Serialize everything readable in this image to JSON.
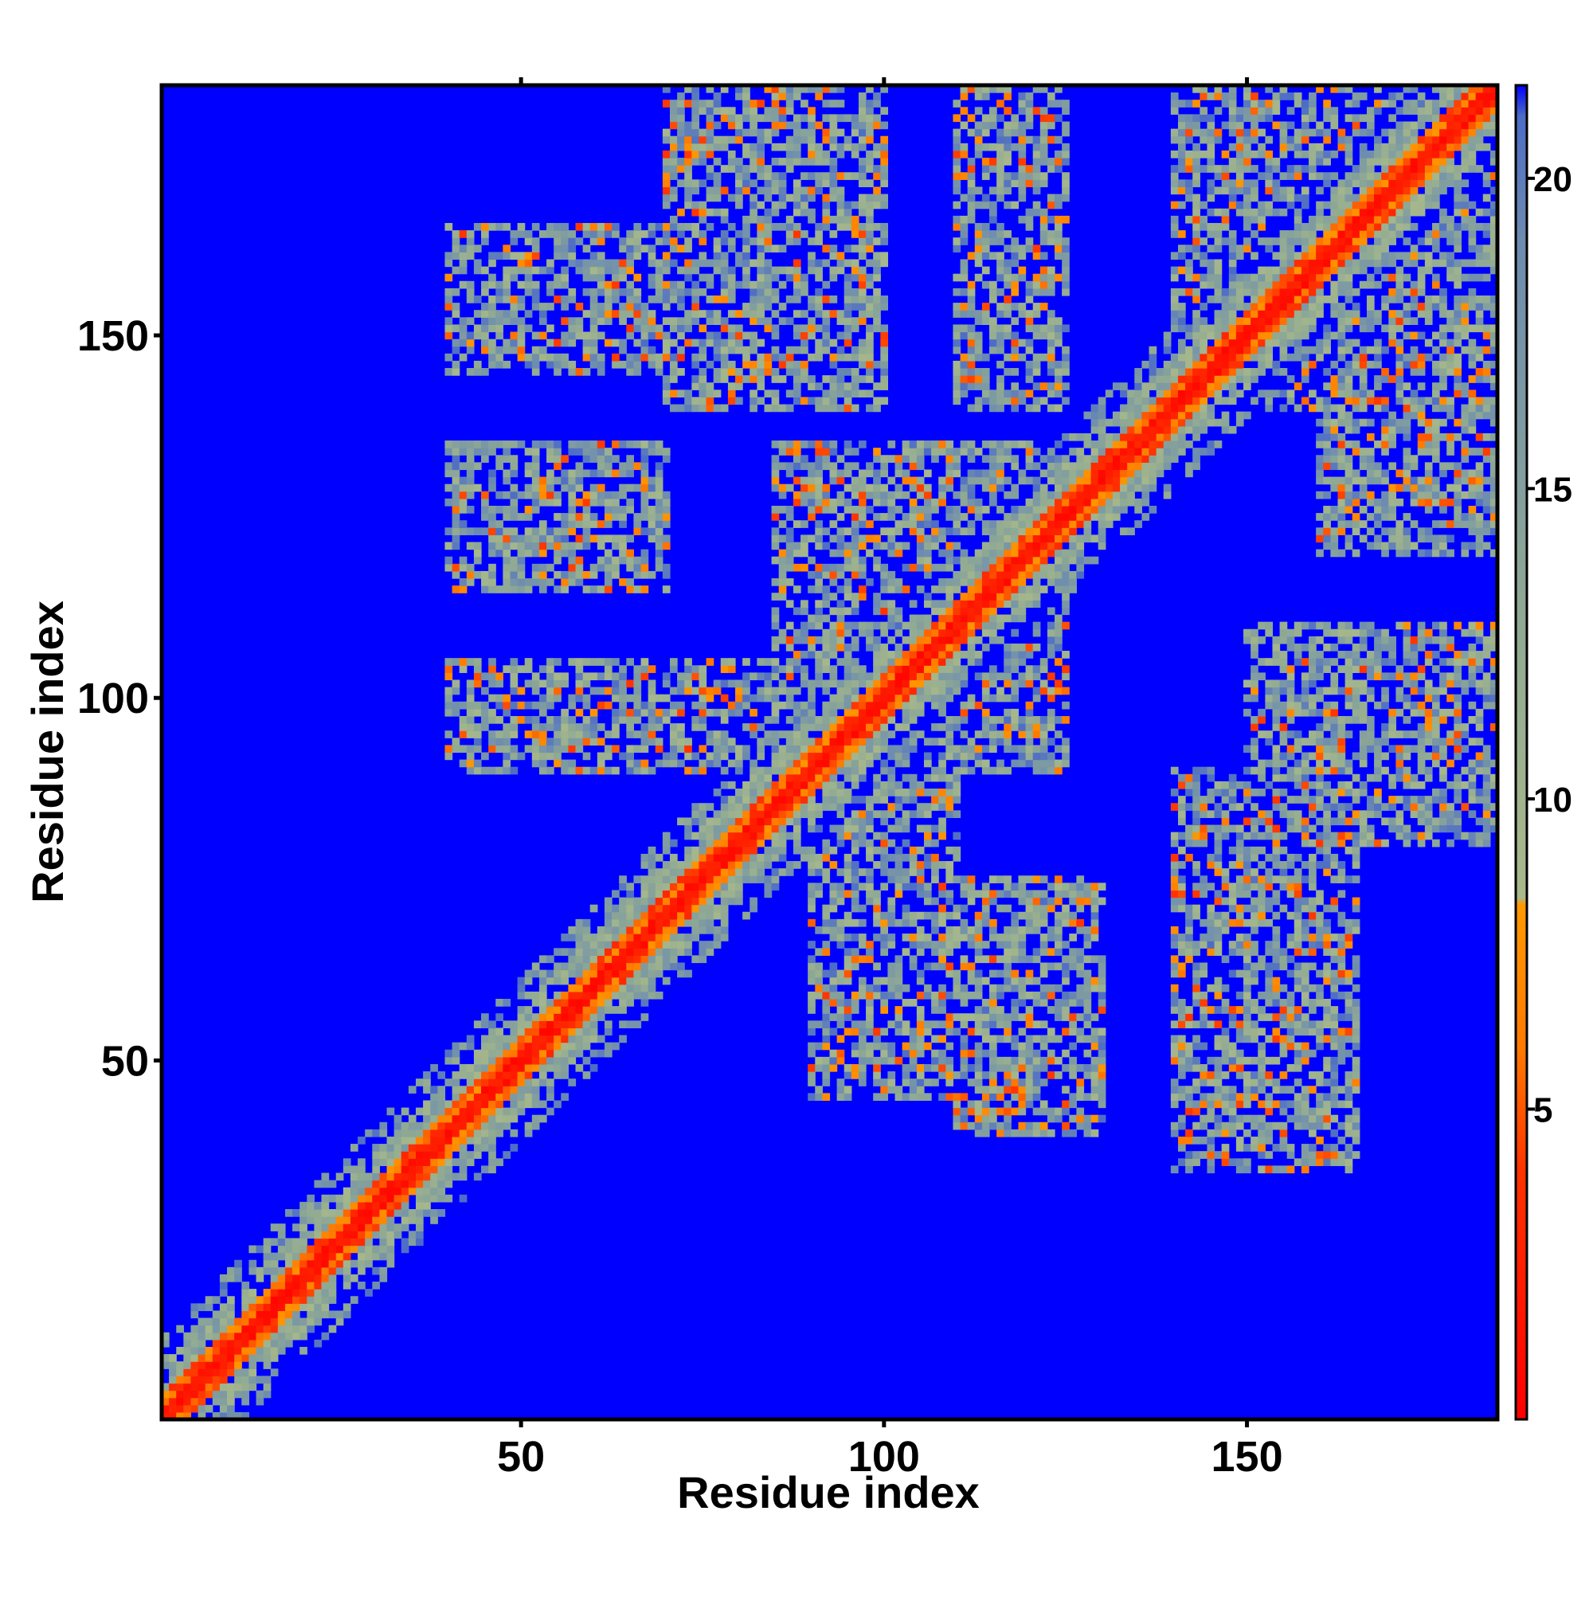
{
  "chart_data": {
    "type": "heatmap",
    "title": "",
    "xlabel": "Residue index",
    "ylabel": "Residue index",
    "xlim": [
      1,
      184
    ],
    "ylim": [
      1,
      184
    ],
    "n_residues": 184,
    "x_ticks": [
      50,
      100,
      150
    ],
    "y_ticks": [
      50,
      100,
      150
    ],
    "colorbar": {
      "ticks": [
        5,
        10,
        15,
        20
      ],
      "range": [
        0,
        21.5
      ],
      "stops": [
        {
          "value": 0.0,
          "color": "#ff0000"
        },
        {
          "value": 4.0,
          "color": "#ff3300"
        },
        {
          "value": 6.0,
          "color": "#ff7a00"
        },
        {
          "value": 8.3,
          "color": "#ff9900"
        },
        {
          "value": 8.4,
          "color": "#a9b98a"
        },
        {
          "value": 13.0,
          "color": "#8fa994"
        },
        {
          "value": 19.0,
          "color": "#6d8cb0"
        },
        {
          "value": 21.0,
          "color": "#4d6cc6"
        },
        {
          "value": 21.5,
          "color": "#0000ff"
        }
      ]
    },
    "background_value": 21.5,
    "colors": {
      "background": "#0000ff",
      "diagonal": "#ff0000"
    },
    "contact_regions": [
      {
        "x": [
          1,
          75
        ],
        "y": [
          1,
          75
        ],
        "kind": "diagonal_band"
      },
      {
        "x": [
          75,
          184
        ],
        "y": [
          75,
          184
        ],
        "kind": "diagonal_band"
      },
      {
        "x": [
          40,
          75
        ],
        "y": [
          145,
          165
        ],
        "kind": "off_diagonal"
      },
      {
        "x": [
          70,
          100
        ],
        "y": [
          140,
          184
        ],
        "kind": "off_diagonal"
      },
      {
        "x": [
          110,
          125
        ],
        "y": [
          140,
          184
        ],
        "kind": "off_diagonal"
      },
      {
        "x": [
          140,
          170
        ],
        "y": [
          140,
          184
        ],
        "kind": "off_diagonal"
      },
      {
        "x": [
          40,
          70
        ],
        "y": [
          115,
          135
        ],
        "kind": "off_diagonal"
      },
      {
        "x": [
          40,
          85
        ],
        "y": [
          90,
          105
        ],
        "kind": "off_diagonal"
      },
      {
        "x": [
          85,
          125
        ],
        "y": [
          90,
          135
        ],
        "kind": "off_diagonal"
      },
      {
        "x": [
          90,
          110
        ],
        "y": [
          45,
          90
        ],
        "kind": "off_diagonal"
      },
      {
        "x": [
          110,
          130
        ],
        "y": [
          40,
          75
        ],
        "kind": "off_diagonal"
      },
      {
        "x": [
          140,
          165
        ],
        "y": [
          35,
          90
        ],
        "kind": "off_diagonal"
      },
      {
        "x": [
          150,
          184
        ],
        "y": [
          80,
          110
        ],
        "kind": "off_diagonal"
      },
      {
        "x": [
          160,
          184
        ],
        "y": [
          120,
          184
        ],
        "kind": "off_diagonal"
      }
    ]
  }
}
